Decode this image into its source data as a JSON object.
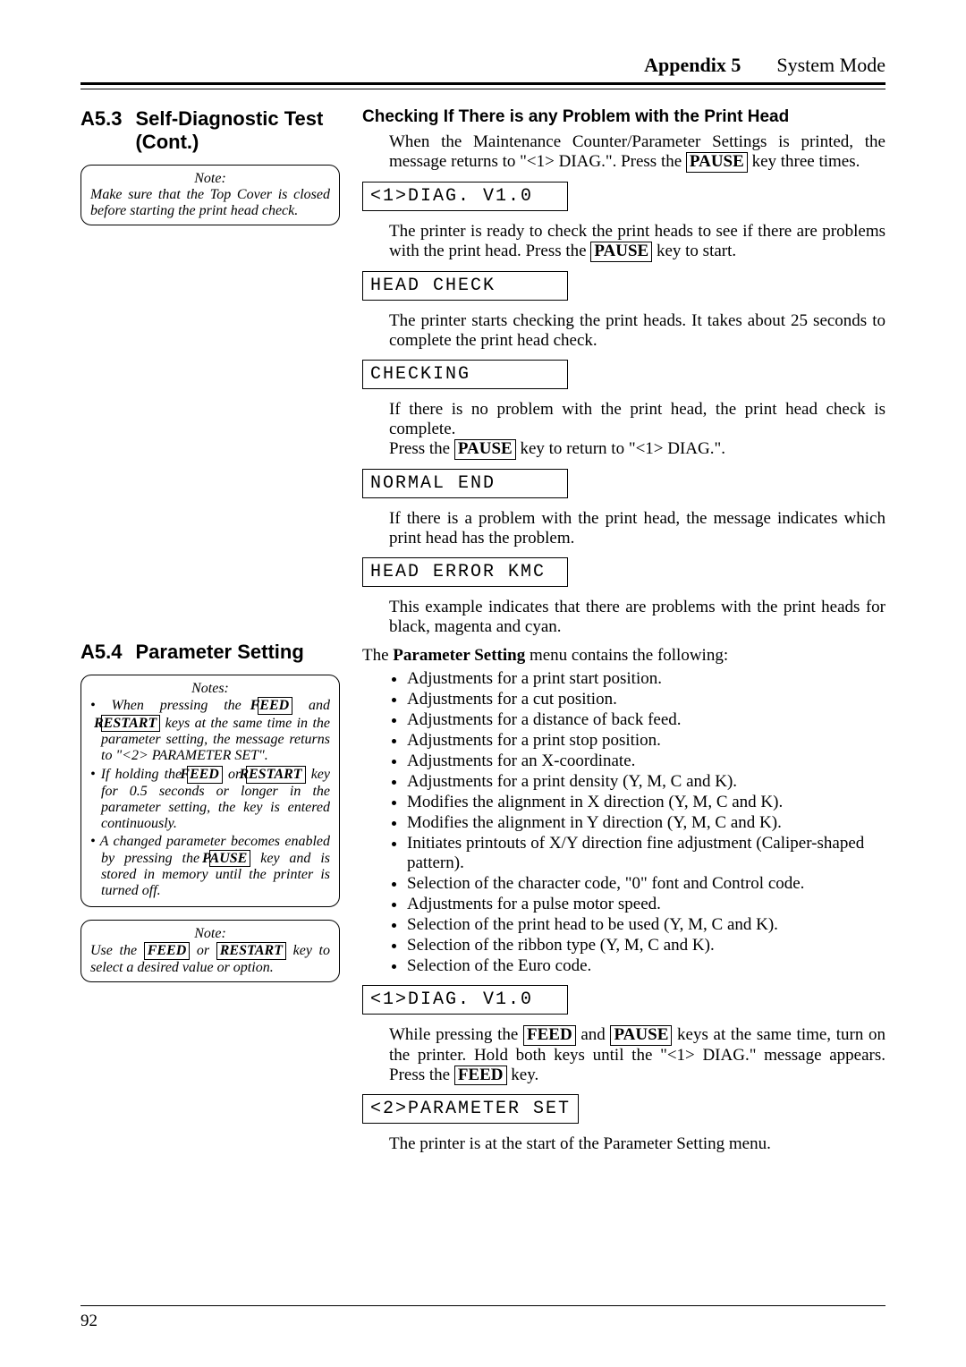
{
  "header": {
    "appendix": "Appendix 5",
    "title": "System Mode"
  },
  "sectionA53": {
    "number": "A5.3",
    "title": "Self-Diagnostic Test (Cont.)",
    "note": {
      "title": "Note:",
      "body": "Make sure that the Top Cover is closed before starting the print head check."
    }
  },
  "sectionA54": {
    "number": "A5.4",
    "title": "Parameter Setting",
    "notes": {
      "title": "Notes:",
      "items": {
        "n1a": "When pressing the ",
        "n1b": " and ",
        "n1c": " keys at the same time in the parameter setting, the message returns to \"<2> PARAMETER SET\".",
        "n2a": "If holding the ",
        "n2b": " or ",
        "n2c": " key for 0.5 seconds or longer in the parameter setting, the key is entered continuously.",
        "n3a": "A changed parameter becomes enabled by pressing the ",
        "n3b": " key and is stored in memory until the printer is turned off."
      }
    },
    "note2": {
      "title": "Note:",
      "bodyA": "Use the ",
      "bodyB": " or ",
      "bodyC": " key to select a desired value or option."
    }
  },
  "right": {
    "heading1": "Checking If There is any Problem with the Print Head",
    "p1a": "When the Maintenance Counter/Parameter Settings is printed, the message returns to \"<1> DIAG.\".  Press the ",
    "p1b": " key three times.",
    "lcd1": "<1>DIAG.   V1.0",
    "p2a": "The printer is ready to check the print heads to see if there are problems with the print head.  Press the ",
    "p2b": " key to start.",
    "lcd2": "HEAD CHECK",
    "p3": "The printer starts checking the print heads.  It takes about 25 seconds to complete the print head check.",
    "lcd3": "CHECKING",
    "p4": "If there is no problem with the print head, the print head check is complete.",
    "p4a": "Press the ",
    "p4b": " key to return to \"<1> DIAG.\".",
    "lcd4": "NORMAL END",
    "p5": "If there is a problem with the print head, the message indicates which print head has the problem.",
    "lcd5": "HEAD ERROR  KMC",
    "p6": "This example indicates that there are problems with the print heads for black, magenta and cyan.",
    "paramIntroA": "The ",
    "paramIntroB": "Parameter Setting",
    "paramIntroC": " menu contains the following:",
    "paramList": [
      "Adjustments for a print start position.",
      "Adjustments for a cut position.",
      "Adjustments for a distance of back feed.",
      "Adjustments for a print stop position.",
      "Adjustments for an X-coordinate.",
      "Adjustments for a print density (Y, M, C and K).",
      "Modifies the alignment in X direction (Y, M, C and K).",
      "Modifies the alignment in Y direction (Y, M, C and K).",
      "Initiates printouts of X/Y direction fine adjustment (Caliper-shaped pattern).",
      "Selection of the character code, \"0\" font and Control code.",
      "Adjustments for a pulse motor speed.",
      "Selection of the print head to be used (Y, M, C and K).",
      "Selection of the ribbon type (Y, M, C and K).",
      "Selection of the Euro code."
    ],
    "lcd6": "<1>DIAG.   V1.0",
    "p7a": "While pressing the ",
    "p7b": " and ",
    "p7c": " keys at the same time, turn on the printer.  Hold both keys until the \"<1> DIAG.\" message appears.  Press the ",
    "p7d": " key.",
    "lcd7": "<2>PARAMETER SET",
    "p8": "The printer is at the start of the Parameter Setting menu."
  },
  "keys": {
    "pause": "PAUSE",
    "feed": "FEED",
    "restart": "RESTART"
  },
  "footer": {
    "pageNum": "92"
  }
}
